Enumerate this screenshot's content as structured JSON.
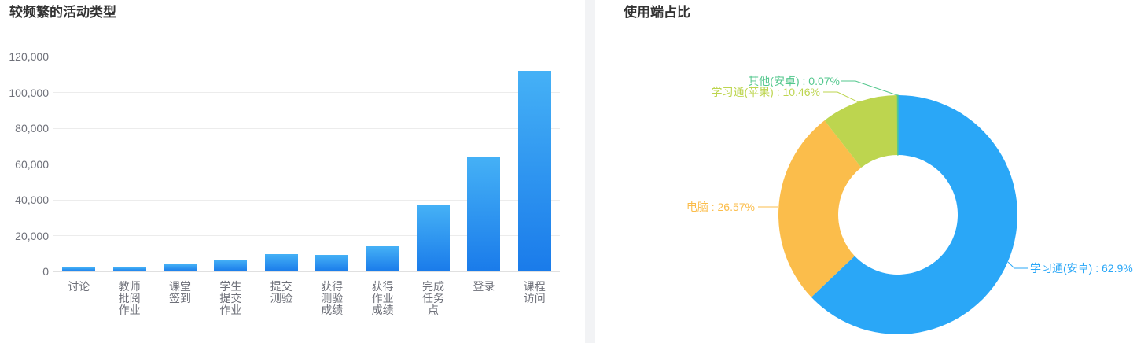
{
  "left_panel": {
    "title": "较频繁的活动类型"
  },
  "right_panel": {
    "title": "使用端占比"
  },
  "colors": {
    "title_text": "#333333",
    "axis_text": "#6e7079",
    "gridline": "#ececec",
    "axis_line": "#e0e0e0",
    "divider": "#f2f3f5",
    "bar_gradient_top": "#45b1f6",
    "bar_gradient_bottom": "#1a7bea"
  },
  "chart_data": [
    {
      "type": "bar",
      "title": "较频繁的活动类型",
      "categories": [
        "讨论",
        "教师批阅作业",
        "课堂签到",
        "学生提交作业",
        "提交测验",
        "获得测验成绩",
        "获得作业成绩",
        "完成任务点",
        "登录",
        "课程访问"
      ],
      "category_lines": [
        [
          "讨论"
        ],
        [
          "教师",
          "批阅",
          "作业"
        ],
        [
          "课堂",
          "签到"
        ],
        [
          "学生",
          "提交",
          "作业"
        ],
        [
          "提交",
          "测验"
        ],
        [
          "获得",
          "测验",
          "成绩"
        ],
        [
          "获得",
          "作业",
          "成绩"
        ],
        [
          "完成",
          "任务",
          "点"
        ],
        [
          "登录"
        ],
        [
          "课程",
          "访问"
        ]
      ],
      "values": [
        2000,
        2100,
        4000,
        6500,
        9500,
        9200,
        14000,
        37000,
        64000,
        112000
      ],
      "xlabel": "",
      "ylabel": "",
      "ylim": [
        0,
        120000
      ],
      "ytick_step": 20000,
      "ytick_labels": [
        "0",
        "20,000",
        "40,000",
        "60,000",
        "80,000",
        "100,000",
        "120,000"
      ],
      "grid": true,
      "legend": false
    },
    {
      "type": "pie",
      "subtype": "donut",
      "title": "使用端占比",
      "start_angle": "top",
      "direction": "clockwise",
      "inner_radius_ratio": 0.5,
      "series": [
        {
          "name": "学习通(安卓)",
          "value_percent": 62.9,
          "label": "学习通(安卓) : 62.9%",
          "color": "#2aa7f7"
        },
        {
          "name": "电脑",
          "value_percent": 26.57,
          "label": "电脑 : 26.57%",
          "color": "#fbbd4b"
        },
        {
          "name": "学习通(苹果)",
          "value_percent": 10.46,
          "label": "学习通(苹果) : 10.46%",
          "color": "#bdd54f"
        },
        {
          "name": "其他(安卓)",
          "value_percent": 0.07,
          "label": "其他(安卓) : 0.07%",
          "color": "#53c78d"
        }
      ]
    }
  ]
}
